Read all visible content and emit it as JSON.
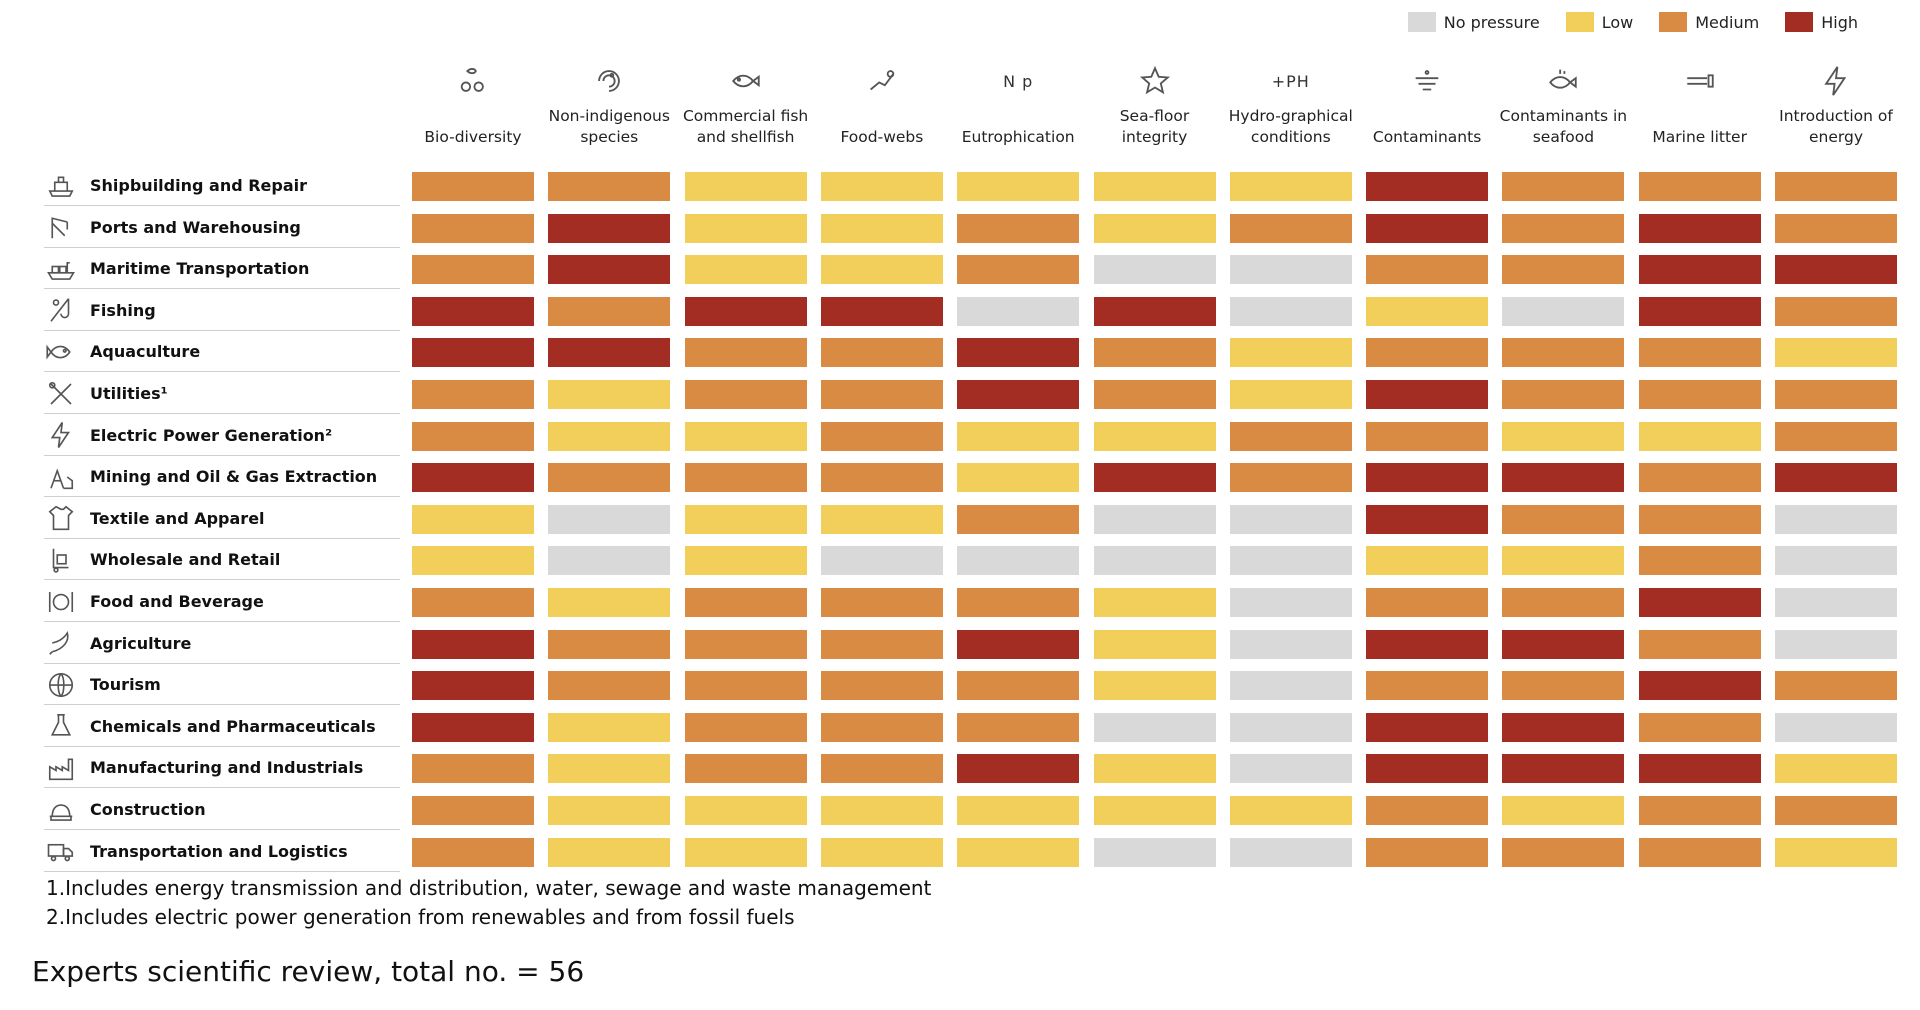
{
  "legend": [
    {
      "key": "none",
      "label": "No pressure",
      "color": "#d9d9d9"
    },
    {
      "key": "low",
      "label": "Low",
      "color": "#f2cf5b"
    },
    {
      "key": "medium",
      "label": "Medium",
      "color": "#d98a43"
    },
    {
      "key": "high",
      "label": "High",
      "color": "#a32d22"
    }
  ],
  "chart_data": {
    "type": "heatmap",
    "title": "",
    "scale": [
      "No pressure",
      "Low",
      "Medium",
      "High"
    ],
    "colors": {
      "No pressure": "#d9d9d9",
      "Low": "#f2cf5b",
      "Medium": "#d98a43",
      "High": "#a32d22"
    },
    "columns": [
      {
        "label": "Bio-diversity",
        "icon": "fish-crab-icon"
      },
      {
        "label": "Non-indigenous species",
        "icon": "shrimp-icon"
      },
      {
        "label": "Commercial fish and shellfish",
        "icon": "fish-icon"
      },
      {
        "label": "Food-webs",
        "icon": "food-web-icon"
      },
      {
        "label": "Eutrophication",
        "icon": "n-p-icon",
        "icon_text": "N p"
      },
      {
        "label": "Sea-floor integrity",
        "icon": "starfish-icon"
      },
      {
        "label": "Hydro-graphical conditions",
        "icon": "ph-icon",
        "icon_text": "+PH"
      },
      {
        "label": "Contaminants",
        "icon": "contaminant-icon"
      },
      {
        "label": "Contaminants in seafood",
        "icon": "fish-contaminant-icon"
      },
      {
        "label": "Marine litter",
        "icon": "litter-icon"
      },
      {
        "label": "Introduction of energy",
        "icon": "lightning-icon"
      }
    ],
    "rows": [
      {
        "label": "Shipbuilding and Repair",
        "icon": "ship-icon",
        "values": [
          "Medium",
          "Medium",
          "Low",
          "Low",
          "Low",
          "Low",
          "Low",
          "High",
          "Medium",
          "Medium",
          "Medium"
        ]
      },
      {
        "label": "Ports and Warehousing",
        "icon": "crane-icon",
        "values": [
          "Medium",
          "High",
          "Low",
          "Low",
          "Medium",
          "Low",
          "Medium",
          "High",
          "Medium",
          "High",
          "Medium"
        ]
      },
      {
        "label": "Maritime Transportation",
        "icon": "container-ship-icon",
        "values": [
          "Medium",
          "High",
          "Low",
          "Low",
          "Medium",
          "No pressure",
          "No pressure",
          "Medium",
          "Medium",
          "High",
          "High"
        ]
      },
      {
        "label": "Fishing",
        "icon": "fishing-icon",
        "values": [
          "High",
          "Medium",
          "High",
          "High",
          "No pressure",
          "High",
          "No pressure",
          "Low",
          "No pressure",
          "High",
          "Medium"
        ]
      },
      {
        "label": "Aquaculture",
        "icon": "fish-outline-icon",
        "values": [
          "High",
          "High",
          "Medium",
          "Medium",
          "High",
          "Medium",
          "Low",
          "Medium",
          "Medium",
          "Medium",
          "Low"
        ]
      },
      {
        "label": "Utilities¹",
        "icon": "tools-icon",
        "values": [
          "Medium",
          "Low",
          "Medium",
          "Medium",
          "High",
          "Medium",
          "Low",
          "High",
          "Medium",
          "Medium",
          "Medium"
        ]
      },
      {
        "label": "Electric Power Generation²",
        "icon": "lightning-icon",
        "values": [
          "Medium",
          "Low",
          "Low",
          "Medium",
          "Low",
          "Low",
          "Medium",
          "Medium",
          "Low",
          "Low",
          "Medium"
        ]
      },
      {
        "label": "Mining and Oil & Gas Extraction",
        "icon": "oil-rig-icon",
        "values": [
          "High",
          "Medium",
          "Medium",
          "Medium",
          "Low",
          "High",
          "Medium",
          "High",
          "High",
          "Medium",
          "High"
        ]
      },
      {
        "label": "Textile and Apparel",
        "icon": "shirt-icon",
        "values": [
          "Low",
          "No pressure",
          "Low",
          "Low",
          "Medium",
          "No pressure",
          "No pressure",
          "High",
          "Medium",
          "Medium",
          "No pressure"
        ]
      },
      {
        "label": "Wholesale and Retail",
        "icon": "cart-icon",
        "values": [
          "Low",
          "No pressure",
          "Low",
          "No pressure",
          "No pressure",
          "No pressure",
          "No pressure",
          "Low",
          "Low",
          "Medium",
          "No pressure"
        ]
      },
      {
        "label": "Food and Beverage",
        "icon": "plate-icon",
        "values": [
          "Medium",
          "Low",
          "Medium",
          "Medium",
          "Medium",
          "Low",
          "No pressure",
          "Medium",
          "Medium",
          "High",
          "No pressure"
        ]
      },
      {
        "label": "Agriculture",
        "icon": "sickle-icon",
        "values": [
          "High",
          "Medium",
          "Medium",
          "Medium",
          "High",
          "Low",
          "No pressure",
          "High",
          "High",
          "Medium",
          "No pressure"
        ]
      },
      {
        "label": "Tourism",
        "icon": "globe-icon",
        "values": [
          "High",
          "Medium",
          "Medium",
          "Medium",
          "Medium",
          "Low",
          "No pressure",
          "Medium",
          "Medium",
          "High",
          "Medium"
        ]
      },
      {
        "label": "Chemicals and Pharmaceuticals",
        "icon": "flask-icon",
        "values": [
          "High",
          "Low",
          "Medium",
          "Medium",
          "Medium",
          "No pressure",
          "No pressure",
          "High",
          "High",
          "Medium",
          "No pressure"
        ]
      },
      {
        "label": "Manufacturing and Industrials",
        "icon": "factory-icon",
        "values": [
          "Medium",
          "Low",
          "Medium",
          "Medium",
          "High",
          "Low",
          "No pressure",
          "High",
          "High",
          "High",
          "Low"
        ]
      },
      {
        "label": "Construction",
        "icon": "helmet-icon",
        "values": [
          "Medium",
          "Low",
          "Low",
          "Low",
          "Low",
          "Low",
          "Low",
          "Medium",
          "Low",
          "Medium",
          "Medium"
        ]
      },
      {
        "label": "Transportation and Logistics",
        "icon": "truck-icon",
        "values": [
          "Medium",
          "Low",
          "Low",
          "Low",
          "Low",
          "No pressure",
          "No pressure",
          "Medium",
          "Medium",
          "Medium",
          "Low"
        ]
      }
    ]
  },
  "footnotes": [
    "1.Includes energy transmission and distribution, water, sewage and waste management",
    "2.Includes electric power generation from renewables and from fossil fuels"
  ],
  "source": "Experts scientific review, total no. = 56"
}
